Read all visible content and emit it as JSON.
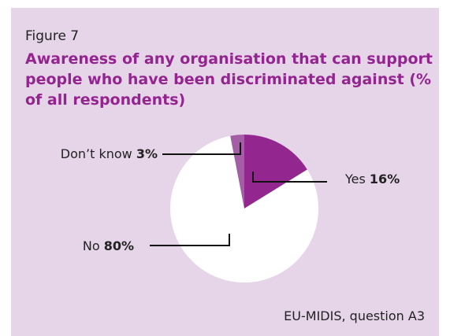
{
  "figure_label": "Figure 7",
  "source": "EU-MIDIS, question A3",
  "colors": {
    "title": "#94248f",
    "yes": "#93278f",
    "dont_know": "#a35ea6",
    "no": "#ffffff",
    "background": "#e6d5e9",
    "leader": "#111111"
  },
  "chart_data": {
    "type": "pie",
    "title": "Awareness of any organisation that can support people who have been discriminated against (% of all respondents)",
    "slices": [
      {
        "label": "Yes",
        "value_text": "16%",
        "value": 16
      },
      {
        "label": "No",
        "value_text": "80%",
        "value": 80
      },
      {
        "label": "Don’t know",
        "value_text": "3%",
        "value": 3
      }
    ]
  }
}
